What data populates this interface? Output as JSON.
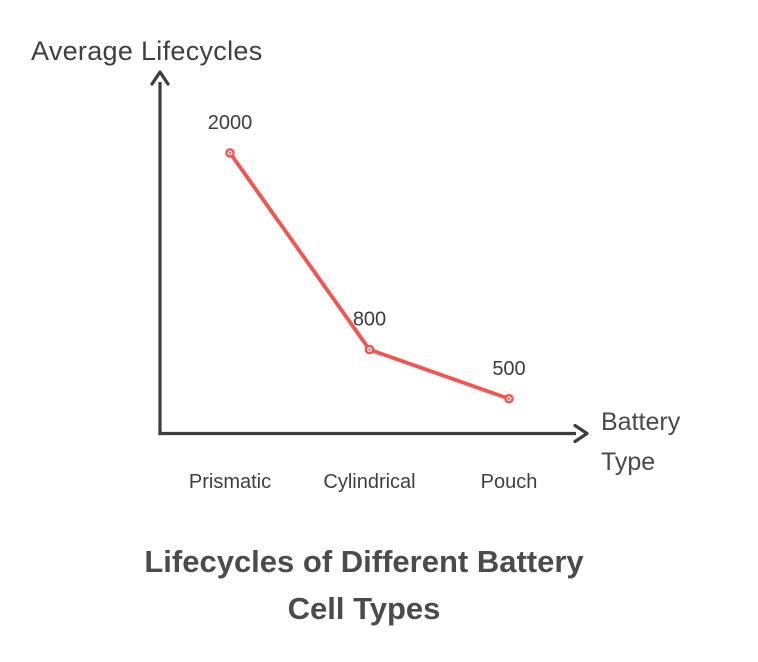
{
  "chart": {
    "y_axis_title": "Average Lifecycles",
    "x_axis_title_lines": [
      "Battery",
      "Type"
    ],
    "title_lines": [
      "Lifecycles of Different Battery",
      "Cell Types"
    ]
  },
  "chart_data": {
    "type": "line",
    "title": "Lifecycles of Different Battery Cell Types",
    "xlabel": "Battery Type",
    "ylabel": "Average Lifecycles",
    "categories": [
      "Prismatic",
      "Cylindrical",
      "Pouch"
    ],
    "values": [
      2000,
      800,
      500
    ],
    "point_labels": [
      "2000",
      "800",
      "500"
    ],
    "ylim": [
      288,
      2494
    ],
    "grid": false,
    "legend": "none",
    "line_color": "#f4534e",
    "marker_fill": "#ffffff",
    "axis_color": "#3d3d3d",
    "label_color": "#3d3d3d",
    "tick_label_color": "#3f3f3f"
  }
}
